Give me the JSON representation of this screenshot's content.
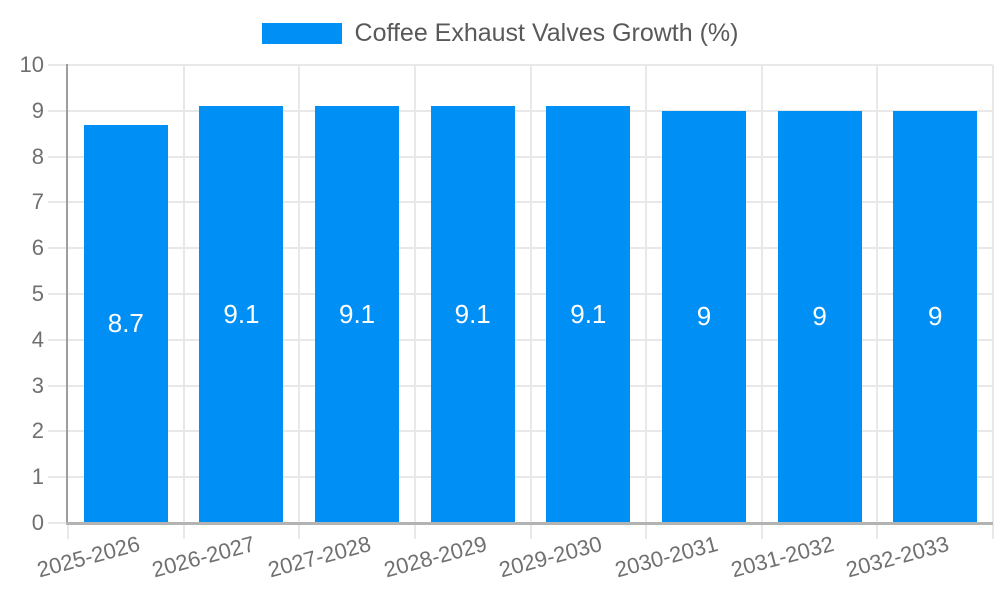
{
  "chart_data": {
    "type": "bar",
    "title": "Coffee Exhaust Valves Growth (%)",
    "categories": [
      "2025-2026",
      "2026-2027",
      "2027-2028",
      "2028-2029",
      "2029-2030",
      "2030-2031",
      "2031-2032",
      "2032-2033"
    ],
    "values": [
      8.7,
      9.1,
      9.1,
      9.1,
      9.1,
      9,
      9,
      9
    ],
    "bar_labels": [
      "8.7",
      "9.1",
      "9.1",
      "9.1",
      "9.1",
      "9",
      "9",
      "9"
    ],
    "xlabel": "",
    "ylabel": "",
    "ylim": [
      0,
      10
    ],
    "yticks": [
      0,
      1,
      2,
      3,
      4,
      5,
      6,
      7,
      8,
      9,
      10
    ],
    "grid": true,
    "legend_position": "top",
    "x_label_rotation_deg": -15,
    "bar_color": "#008FF5",
    "bar_label_color": "#FFFFFF"
  },
  "colors": {
    "background": "#FFFFFF",
    "bar": "#008FF5",
    "gridline": "#E8E8E8",
    "y_axis_line": "#9E9E9E",
    "x_axis_line": "#B3B3B3",
    "tick_label": "#707070",
    "legend_text": "#595959",
    "bar_label": "#FFFFFF"
  }
}
